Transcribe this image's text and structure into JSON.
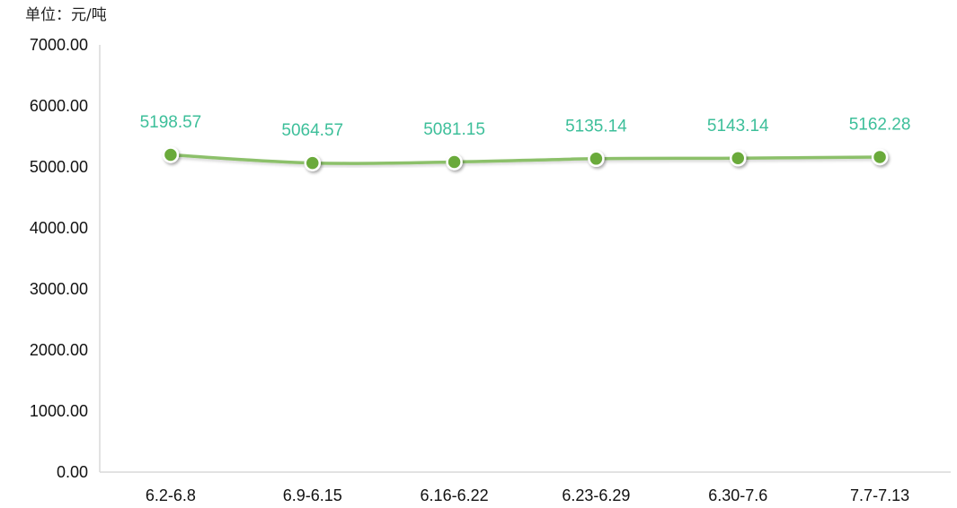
{
  "chart_data": {
    "type": "line",
    "unit_label": "单位：元/吨",
    "categories": [
      "6.2-6.8",
      "6.9-6.15",
      "6.16-6.22",
      "6.23-6.29",
      "6.30-7.6",
      "7.7-7.13"
    ],
    "series": [
      {
        "values": [
          5198.57,
          5064.57,
          5081.15,
          5135.14,
          5143.14,
          5162.28
        ],
        "data_labels": [
          "5198.57",
          "5064.57",
          "5081.15",
          "5135.14",
          "5143.14",
          "5162.28"
        ]
      }
    ],
    "y_ticks": [
      "0.00",
      "1000.00",
      "2000.00",
      "3000.00",
      "4000.00",
      "5000.00",
      "6000.00",
      "7000.00"
    ],
    "ylim": [
      0,
      7000
    ],
    "grid": false,
    "legend": "none",
    "colors": {
      "line": "#8cc06a",
      "marker_fill": "#6aaa3a",
      "marker_stroke": "#ffffff",
      "data_label": "#3dbf9a",
      "axis": "#d9d9d9",
      "tick_text": "#111111"
    }
  }
}
